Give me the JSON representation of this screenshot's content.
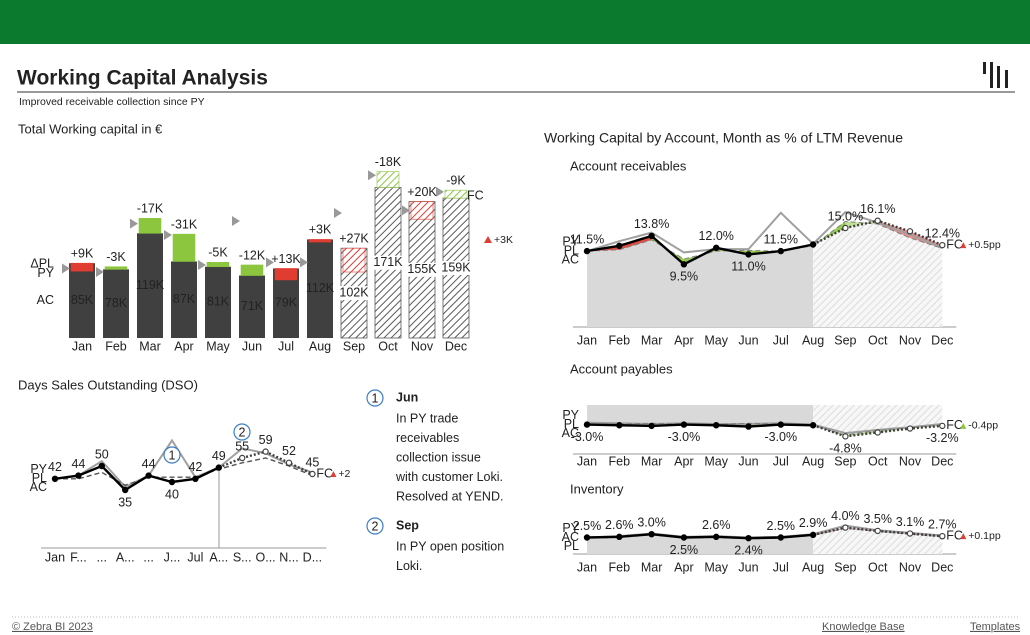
{
  "header": {
    "title": "Working Capital Analysis",
    "subtitle": "Improved receivable collection since PY"
  },
  "account_section": {
    "title": "Working Capital by Account, Month as % of LTM Revenue"
  },
  "chart_data": [
    {
      "type": "variance-column",
      "title": "Total Working capital in €",
      "categories": [
        "Jan",
        "Feb",
        "Mar",
        "Apr",
        "May",
        "Jun",
        "Jul",
        "Aug",
        "Sep",
        "Oct",
        "Nov",
        "Dec"
      ],
      "series": [
        {
          "name": "AC",
          "color": "#404040",
          "values": [
            85,
            78,
            119,
            87,
            81,
            71,
            79,
            112,
            null,
            null,
            null,
            null
          ],
          "value_labels": [
            "85K",
            "78K",
            "119K",
            "87K",
            "81K",
            "71K",
            "79K",
            "112K",
            null,
            null,
            null,
            null
          ]
        },
        {
          "name": "FC",
          "color": "#595959",
          "values": [
            null,
            null,
            null,
            null,
            null,
            null,
            null,
            null,
            102,
            171,
            155,
            159
          ],
          "value_labels": [
            null,
            null,
            null,
            null,
            null,
            null,
            null,
            null,
            "102K",
            "171K",
            "155K",
            "159K"
          ]
        },
        {
          "name": "PY",
          "color": "#999999",
          "values": [
            79,
            75,
            130,
            117,
            83,
            133,
            86,
            86,
            142,
            185,
            145,
            166
          ]
        },
        {
          "name": "ΔPL",
          "values": [
            9,
            -3,
            -17,
            -31,
            -5,
            -12,
            13,
            3,
            27,
            -18,
            20,
            -9
          ],
          "value_labels": [
            "+9K",
            "-3K",
            "-17K",
            "-31K",
            "-5K",
            "-12K",
            "+13K",
            "+3K",
            "+27K",
            "-18K",
            "+20K",
            "-9K"
          ]
        }
      ],
      "positive_color": "#e03c31",
      "negative_color": "#8cc63e",
      "ylim": [
        0,
        200
      ],
      "variance": {
        "value": 3,
        "label": "+3K"
      }
    },
    {
      "type": "line",
      "title": "Days Sales Outstanding (DSO)",
      "categories": [
        "Jan",
        "F...",
        "...",
        "A...",
        "...",
        "J...",
        "Jul",
        "A...",
        "S...",
        "O...",
        "N...",
        "D..."
      ],
      "series": [
        {
          "name": "AC",
          "color": "#000000",
          "values": [
            42,
            44,
            50,
            35,
            44,
            40,
            42,
            49,
            null,
            null,
            null,
            null
          ]
        },
        {
          "name": "FC",
          "color": "#404040",
          "values": [
            null,
            null,
            null,
            null,
            null,
            null,
            null,
            null,
            55,
            59,
            52,
            45
          ]
        },
        {
          "name": "PY",
          "color": "#a0a0a0",
          "values": [
            42,
            44,
            53,
            37,
            44,
            66,
            43,
            49,
            61,
            58,
            51,
            46
          ]
        },
        {
          "name": "PL",
          "color": "#555555",
          "values": [
            42,
            42,
            46,
            38,
            43,
            43,
            43,
            48,
            52,
            55,
            50,
            44
          ]
        }
      ],
      "positive_color": "#e03c31",
      "negative_color": "#8cc63e",
      "ylim": [
        0,
        70
      ],
      "area": false,
      "variance": {
        "value": 2,
        "label": "+2"
      }
    },
    {
      "type": "line",
      "title": "Account receivables",
      "categories": [
        "Jan",
        "Feb",
        "Mar",
        "Apr",
        "May",
        "Jun",
        "Jul",
        "Aug",
        "Sep",
        "Oct",
        "Nov",
        "Dec"
      ],
      "series": [
        {
          "name": "AC",
          "color": "#000000",
          "values": [
            11.5,
            12.3,
            13.8,
            9.5,
            12.0,
            11.0,
            11.5,
            12.5,
            null,
            null,
            null,
            null
          ],
          "value_labels": [
            "11.5%",
            null,
            "13.8%",
            "9.5%",
            "12.0%",
            "11.0%",
            "11.5%",
            null,
            null,
            null,
            null,
            null
          ]
        },
        {
          "name": "FC",
          "color": "#404040",
          "values": [
            null,
            null,
            null,
            null,
            null,
            null,
            null,
            null,
            15.0,
            16.1,
            14.5,
            12.4
          ],
          "value_labels": [
            null,
            null,
            null,
            null,
            null,
            null,
            null,
            null,
            "15.0%",
            "16.1%",
            null,
            "12.4%"
          ]
        },
        {
          "name": "PY",
          "color": "#a0a0a0",
          "values": [
            11.5,
            13.0,
            14.3,
            11.3,
            11.8,
            11.8,
            17.3,
            12.6,
            17.4,
            15.8,
            14.0,
            12.0
          ]
        },
        {
          "name": "PL",
          "color": "#808080",
          "values": [
            11.5,
            11.7,
            13.2,
            10.3,
            11.5,
            11.6,
            11.5,
            12.3,
            16.0,
            15.6,
            13.5,
            11.9
          ]
        }
      ],
      "positive_color": "#e03c31",
      "negative_color": "#8cc63e",
      "area": true,
      "area_color": "#d9d9d9",
      "ylim": [
        0,
        20
      ],
      "variance": {
        "value": 0.5,
        "label": "+0.5pp"
      }
    },
    {
      "type": "line",
      "title": "Account payables",
      "categories": [
        "Jan",
        "Feb",
        "Mar",
        "Apr",
        "May",
        "Jun",
        "Jul",
        "Aug",
        "Sep",
        "Oct",
        "Nov",
        "Dec"
      ],
      "series": [
        {
          "name": "AC",
          "color": "#000000",
          "values": [
            -3.0,
            -3.1,
            -3.2,
            -3.0,
            -3.1,
            -3.3,
            -3.0,
            -3.1,
            null,
            null,
            null,
            null
          ],
          "value_labels": [
            "-3.0%",
            null,
            null,
            "-3.0%",
            null,
            null,
            "-3.0%",
            null,
            null,
            null,
            null,
            null
          ]
        },
        {
          "name": "FC",
          "color": "#404040",
          "values": [
            null,
            null,
            null,
            null,
            null,
            null,
            null,
            null,
            -4.8,
            -4.2,
            -3.6,
            -3.2
          ],
          "value_labels": [
            null,
            null,
            null,
            null,
            null,
            null,
            null,
            null,
            "-4.8%",
            null,
            null,
            "-3.2%"
          ]
        },
        {
          "name": "PY",
          "color": "#a0a0a0",
          "values": [
            -2.7,
            -2.8,
            -2.9,
            -2.8,
            -2.9,
            -2.9,
            -2.8,
            -3.0,
            -4.3,
            -3.8,
            -3.4,
            -2.9
          ]
        },
        {
          "name": "PL",
          "color": "#808080",
          "values": [
            -3.0,
            -2.9,
            -2.8,
            -2.9,
            -3.0,
            -2.8,
            -2.9,
            -3.1,
            -4.6,
            -3.9,
            -3.5,
            -3.0
          ]
        }
      ],
      "positive_color": "#e03c31",
      "negative_color": "#8cc63e",
      "area": true,
      "area_color": "#d9d9d9",
      "ylim": [
        -7.5,
        0
      ],
      "variance": {
        "value": -0.4,
        "label": "-0.4pp"
      }
    },
    {
      "type": "line",
      "title": "Inventory",
      "categories": [
        "Jan",
        "Feb",
        "Mar",
        "Apr",
        "May",
        "Jun",
        "Jul",
        "Aug",
        "Sep",
        "Oct",
        "Nov",
        "Dec"
      ],
      "series": [
        {
          "name": "AC",
          "color": "#000000",
          "values": [
            2.5,
            2.6,
            3.0,
            2.5,
            2.6,
            2.4,
            2.5,
            2.9,
            null,
            null,
            null,
            null
          ],
          "value_labels": [
            "2.5%",
            "2.6%",
            "3.0%",
            "2.5%",
            "2.6%",
            "2.4%",
            "2.5%",
            "2.9%",
            null,
            null,
            null,
            null
          ]
        },
        {
          "name": "FC",
          "color": "#404040",
          "values": [
            null,
            null,
            null,
            null,
            null,
            null,
            null,
            null,
            4.0,
            3.5,
            3.1,
            2.7
          ],
          "value_labels": [
            null,
            null,
            null,
            null,
            null,
            null,
            null,
            null,
            "4.0%",
            "3.5%",
            "3.1%",
            "2.7%"
          ]
        },
        {
          "name": "PY",
          "color": "#a0a0a0",
          "values": [
            2.5,
            2.7,
            3.1,
            2.6,
            2.7,
            2.5,
            2.6,
            3.0,
            4.3,
            3.6,
            3.2,
            2.8
          ]
        },
        {
          "name": "PL",
          "color": "#808080",
          "values": [
            2.4,
            2.5,
            2.9,
            2.4,
            2.5,
            2.3,
            2.4,
            2.8,
            3.9,
            3.4,
            3.0,
            2.6
          ]
        }
      ],
      "positive_color": "#e03c31",
      "negative_color": "#8cc63e",
      "area": true,
      "area_color": "#d9d9d9",
      "ylim": [
        0,
        5
      ],
      "variance": {
        "value": 0.1,
        "label": "+0.1pp"
      }
    }
  ],
  "notes": [
    {
      "number": 1,
      "title": "Jun",
      "text": [
        "In PY trade",
        "receivables",
        "collection issue",
        "with customer Loki.",
        "Resolved at YEND."
      ]
    },
    {
      "number": 2,
      "title": "Sep",
      "text": [
        "In PY open position",
        "Loki."
      ]
    }
  ],
  "footer": {
    "copyright": "© Zebra BI 2023",
    "links": [
      "Knowledge Base",
      "Templates"
    ]
  }
}
